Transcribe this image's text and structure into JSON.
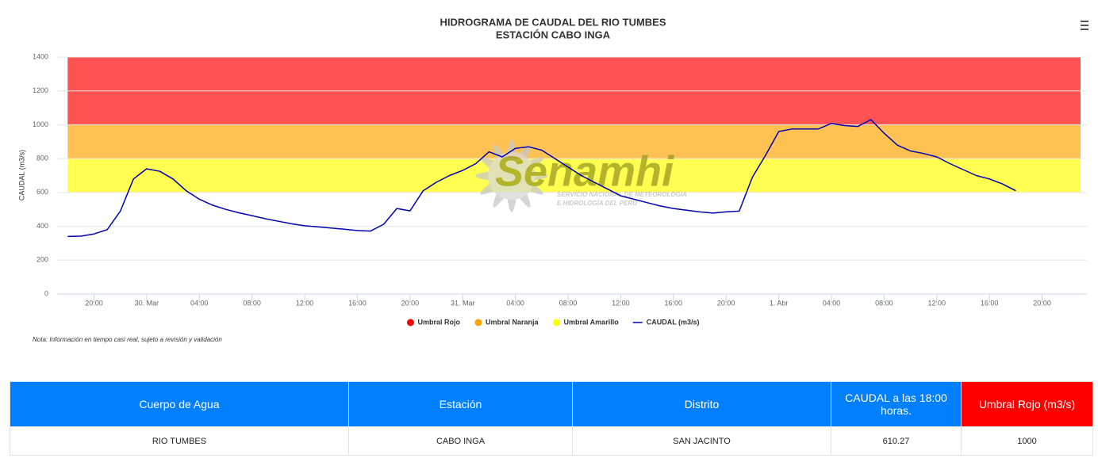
{
  "chart_data": {
    "type": "line",
    "title": "HIDROGRAMA DE CAUDAL DEL RIO TUMBES",
    "subtitle": "ESTACIÓN CABO INGA",
    "y_label": "CAUDAL (m3/s)",
    "ylim": [
      0,
      1400
    ],
    "yticks": [
      0,
      200,
      400,
      600,
      800,
      1000,
      1200,
      1400
    ],
    "xlim": [
      17.2,
      95.4
    ],
    "xticks": [
      {
        "value": 20,
        "label": "20:00"
      },
      {
        "value": 24,
        "label": "30. Mar"
      },
      {
        "value": 28,
        "label": "04:00"
      },
      {
        "value": 32,
        "label": "08:00"
      },
      {
        "value": 36,
        "label": "12:00"
      },
      {
        "value": 40,
        "label": "16:00"
      },
      {
        "value": 44,
        "label": "20:00"
      },
      {
        "value": 48,
        "label": "31. Mar"
      },
      {
        "value": 52,
        "label": "04:00"
      },
      {
        "value": 56,
        "label": "08:00"
      },
      {
        "value": 60,
        "label": "12:00"
      },
      {
        "value": 64,
        "label": "16:00"
      },
      {
        "value": 68,
        "label": "20:00"
      },
      {
        "value": 72,
        "label": "1. Abr"
      },
      {
        "value": 76,
        "label": "04:00"
      },
      {
        "value": 80,
        "label": "08:00"
      },
      {
        "value": 84,
        "label": "12:00"
      },
      {
        "value": 88,
        "label": "16:00"
      },
      {
        "value": 92,
        "label": "20:00"
      }
    ],
    "grid": true,
    "thresholds": [
      {
        "name": "Umbral Rojo",
        "color": "#ff0000",
        "from": 1000,
        "to": 1400
      },
      {
        "name": "Umbral Naranja",
        "color": "#ffa500",
        "from": 800,
        "to": 1000
      },
      {
        "name": "Umbral Amarillo",
        "color": "#ffff00",
        "from": 600,
        "to": 800
      }
    ],
    "x": [
      18,
      19,
      20,
      21,
      22,
      23,
      24,
      25,
      26,
      27,
      28,
      29,
      30,
      31,
      32,
      33,
      34,
      35,
      36,
      37,
      38,
      39,
      40,
      41,
      42,
      43,
      44,
      45,
      46,
      47,
      48,
      49,
      50,
      51,
      52,
      53,
      54,
      55,
      56,
      57,
      58,
      59,
      60,
      61,
      62,
      63,
      64,
      65,
      66,
      67,
      68,
      69,
      70,
      71,
      72,
      73,
      74,
      75,
      76,
      77,
      78,
      79,
      80,
      81,
      82,
      83,
      84,
      85,
      86,
      87,
      88,
      89,
      90
    ],
    "series": [
      {
        "name": "CAUDAL (m3/s)",
        "color": "#0000b0",
        "values": [
          340,
          342,
          355,
          380,
          490,
          680,
          740,
          725,
          680,
          610,
          560,
          525,
          500,
          480,
          463,
          445,
          430,
          415,
          403,
          397,
          390,
          383,
          375,
          372,
          412,
          505,
          491,
          610,
          660,
          700,
          730,
          770,
          840,
          810,
          860,
          870,
          850,
          800,
          750,
          700,
          660,
          620,
          580,
          560,
          540,
          520,
          505,
          495,
          485,
          478,
          485,
          490,
          690,
          820,
          960,
          975,
          975,
          975,
          1008,
          995,
          990,
          1030,
          950,
          880,
          845,
          830,
          810,
          770,
          735,
          700,
          680,
          650,
          610.27
        ]
      }
    ],
    "legend": "bottom",
    "note": "Nota: Información en tiempo casi real, sujeto a revisión y validación",
    "watermark": {
      "name": "Senamhi",
      "line1": "SERVICIO NACIONAL DE METEOROLOGIA",
      "line2": "E HIDROLOGÍA DEL PERÚ"
    }
  },
  "table": {
    "headers": [
      "Cuerpo de Agua",
      "Estación",
      "Distrito",
      "CAUDAL a las 18:00 horas.",
      "Umbral Rojo (m3/s)"
    ],
    "rows": [
      [
        "RIO TUMBES",
        "CABO INGA",
        "SAN JACINTO",
        "610.27",
        "1000"
      ]
    ]
  }
}
